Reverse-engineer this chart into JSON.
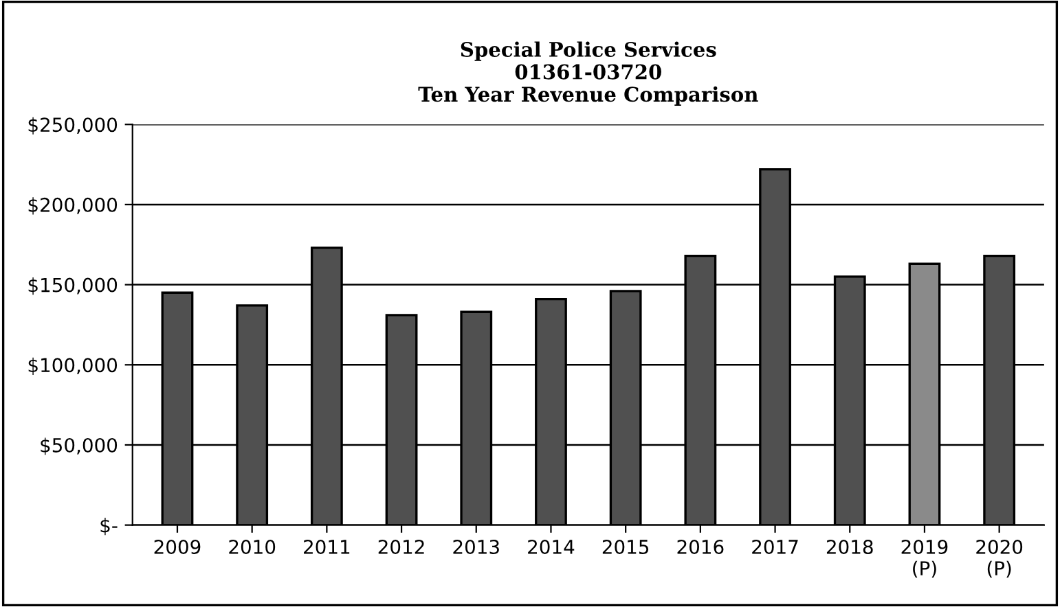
{
  "chart_data": {
    "type": "bar",
    "title": "Special Police Services\n01361-03720\nTen Year Revenue Comparison",
    "categories": [
      "2009",
      "2010",
      "2011",
      "2012",
      "2013",
      "2014",
      "2015",
      "2016",
      "2017",
      "2018",
      "2019\n(P)",
      "2020\n(P)"
    ],
    "values": [
      145000,
      137000,
      173000,
      131000,
      133000,
      141000,
      146000,
      168000,
      222000,
      155000,
      163000,
      168000
    ],
    "colors": [
      "#505050",
      "#505050",
      "#505050",
      "#505050",
      "#505050",
      "#505050",
      "#505050",
      "#505050",
      "#505050",
      "#505050",
      "#8a8a8a",
      "#505050"
    ],
    "ylim": [
      0,
      250000
    ],
    "yticks": [
      {
        "value": 0,
        "label": "$-"
      },
      {
        "value": 50000,
        "label": "$50,000"
      },
      {
        "value": 100000,
        "label": "$100,000"
      },
      {
        "value": 150000,
        "label": "$150,000"
      },
      {
        "value": 200000,
        "label": "$200,000"
      },
      {
        "value": 250000,
        "label": "$250,000"
      }
    ],
    "grid": "y"
  }
}
